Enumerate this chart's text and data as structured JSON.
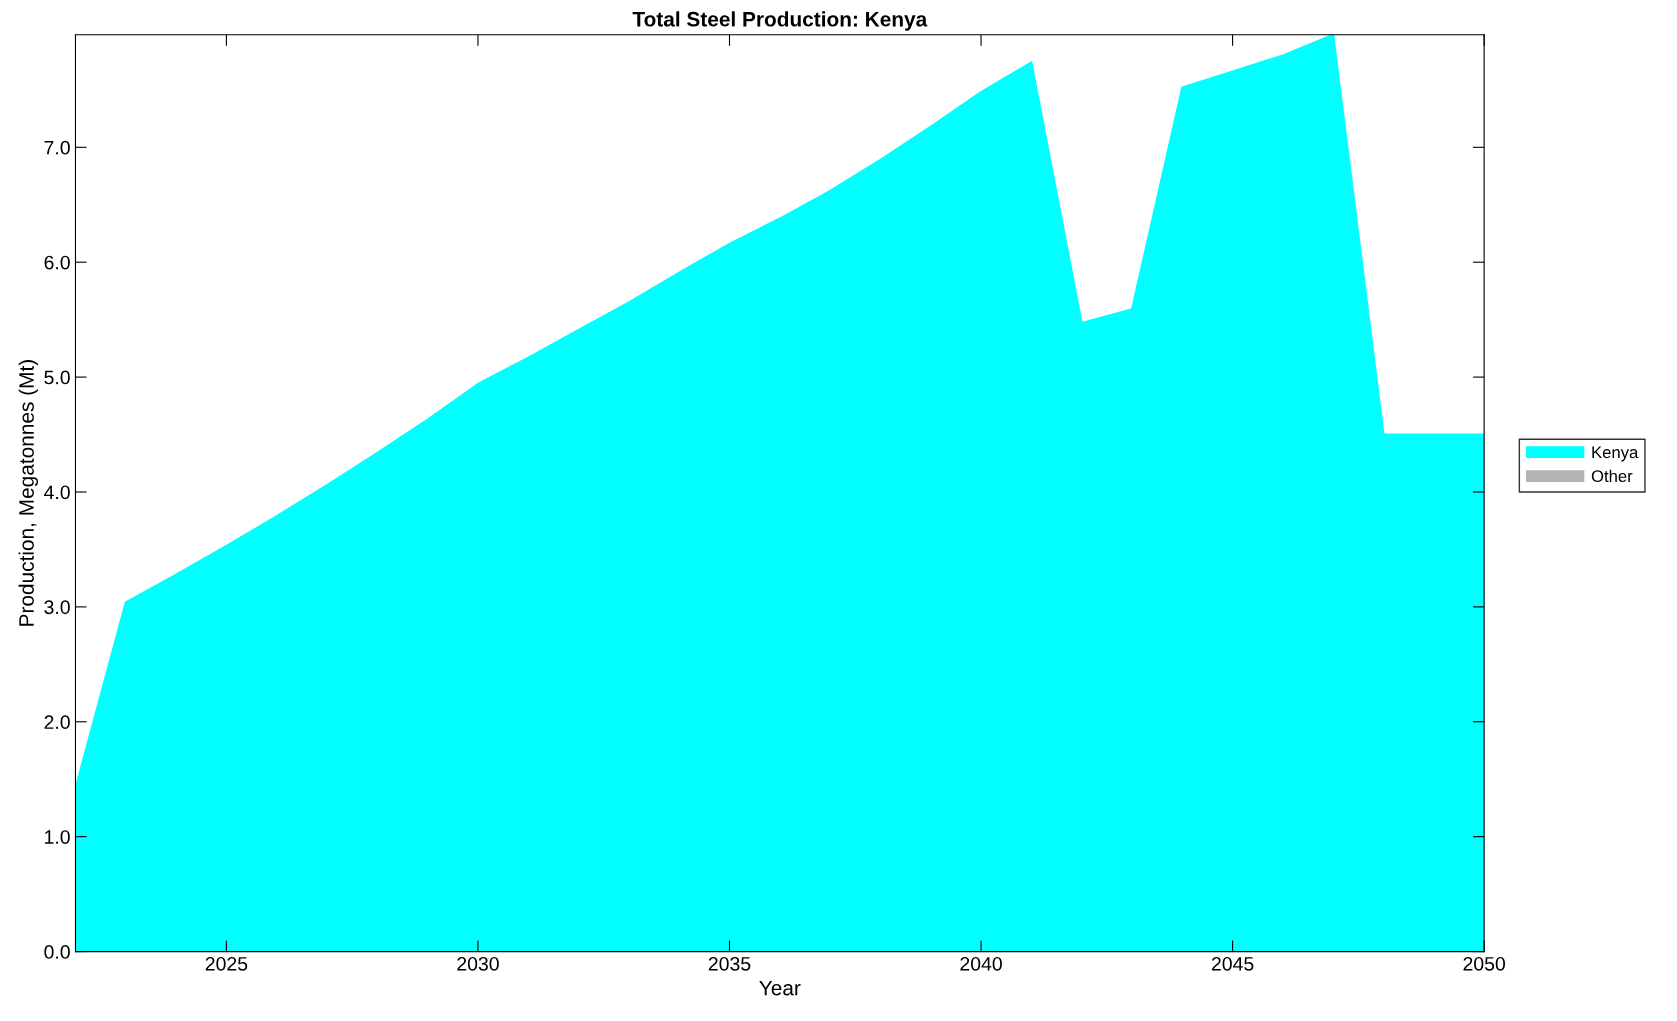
{
  "chart_data": {
    "type": "area",
    "title": "Total Steel Production: Kenya",
    "xlabel": "Year",
    "ylabel": "Production, Megatonnes (Mt)",
    "x": [
      2022,
      2023,
      2024,
      2025,
      2026,
      2027,
      2028,
      2029,
      2030,
      2031,
      2032,
      2033,
      2034,
      2035,
      2036,
      2037,
      2038,
      2039,
      2040,
      2041,
      2042,
      2043,
      2044,
      2045,
      2046,
      2047,
      2048,
      2049,
      2050
    ],
    "series": [
      {
        "name": "Kenya",
        "color": "#00ffff",
        "values": [
          1.42,
          3.04,
          3.28,
          3.53,
          3.79,
          4.06,
          4.34,
          4.63,
          4.94,
          5.17,
          5.41,
          5.65,
          5.91,
          6.16,
          6.38,
          6.62,
          6.89,
          7.18,
          7.48,
          7.74,
          5.47,
          5.59,
          7.52,
          7.66,
          7.8,
          7.98,
          4.5,
          4.5,
          4.5
        ]
      },
      {
        "name": "Other",
        "color": "#b3b3b3",
        "values": [
          null,
          null,
          null,
          null,
          null,
          null,
          null,
          null,
          null,
          null,
          null,
          null,
          null,
          null,
          null,
          null,
          null,
          null,
          null,
          null,
          null,
          null,
          null,
          null,
          null,
          null,
          null,
          null,
          null
        ]
      }
    ],
    "xlim": [
      2022,
      2050
    ],
    "xticks": [
      2025,
      2030,
      2035,
      2040,
      2045,
      2050
    ],
    "ylim": [
      0,
      7.98
    ],
    "yticks": [
      {
        "value": 0,
        "label": "0.0"
      },
      {
        "value": 1,
        "label": "1.0"
      },
      {
        "value": 2,
        "label": "2.0"
      },
      {
        "value": 3,
        "label": "3.0"
      },
      {
        "value": 4,
        "label": "4.0"
      },
      {
        "value": 5,
        "label": "5.0"
      },
      {
        "value": 6,
        "label": "6.0"
      },
      {
        "value": 7,
        "label": "7.0"
      }
    ],
    "grid": false,
    "legend": "right"
  }
}
